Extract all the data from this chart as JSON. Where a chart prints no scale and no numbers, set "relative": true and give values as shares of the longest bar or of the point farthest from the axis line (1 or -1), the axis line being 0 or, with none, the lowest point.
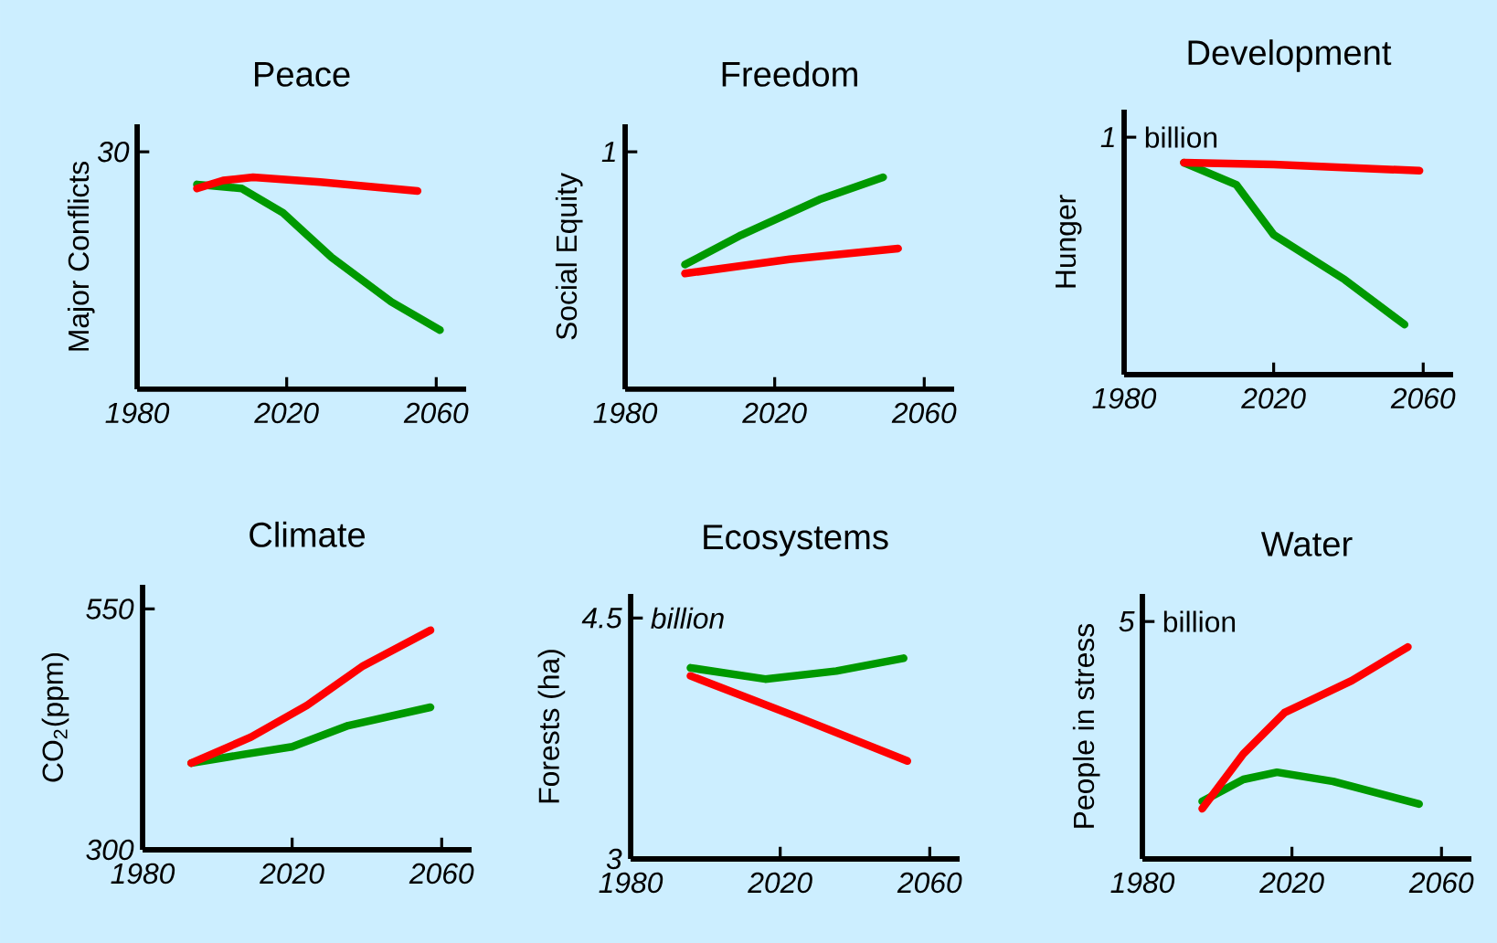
{
  "chart_data": [
    {
      "type": "line",
      "title": "Peace",
      "ylabel": "Major Conflicts",
      "relative": true,
      "annotations": [
        "30"
      ],
      "xlim": [
        1980,
        2068
      ],
      "xticks": [
        1980,
        2020,
        2060
      ],
      "series": [
        {
          "color": "#009900",
          "x": [
            1996,
            2008,
            2019,
            2032,
            2048,
            2061
          ],
          "values": [
            0.966,
            0.947,
            0.832,
            0.622,
            0.412,
            0.279
          ]
        },
        {
          "color": "#ff0000",
          "x": [
            1996,
            2003,
            2011,
            2029,
            2055
          ],
          "values": [
            0.947,
            0.985,
            1.0,
            0.977,
            0.935
          ]
        }
      ]
    },
    {
      "type": "line",
      "title": "Freedom",
      "ylabel": "Social Equity",
      "relative": true,
      "annotations": [
        "1"
      ],
      "xlim": [
        1980,
        2068
      ],
      "xticks": [
        1980,
        2020,
        2060
      ],
      "series": [
        {
          "color": "#009900",
          "x": [
            1996,
            2011,
            2032,
            2049
          ],
          "values": [
            0.588,
            0.727,
            0.895,
            1.0
          ]
        },
        {
          "color": "#ff0000",
          "x": [
            1996,
            2024,
            2053
          ],
          "values": [
            0.546,
            0.613,
            0.664
          ]
        }
      ]
    },
    {
      "type": "line",
      "title": "Development",
      "ylabel": "Hunger",
      "relative": true,
      "annotations": [
        "1",
        "billion"
      ],
      "xlim": [
        1980,
        2068
      ],
      "xticks": [
        1980,
        2020,
        2060
      ],
      "series": [
        {
          "color": "#009900",
          "x": [
            1996,
            2010,
            2020,
            2039,
            2055
          ],
          "values": [
            1.0,
            0.896,
            0.66,
            0.448,
            0.236
          ]
        },
        {
          "color": "#ff0000",
          "x": [
            1996,
            2020,
            2059
          ],
          "values": [
            1.0,
            0.991,
            0.962
          ]
        }
      ]
    },
    {
      "type": "line",
      "title": "Climate",
      "ylabel": "CO$_{2}$(ppm)",
      "xlim": [
        1980,
        2068
      ],
      "xticks": [
        1980,
        2020,
        2060
      ],
      "ylim": [
        300,
        575
      ],
      "yticks": [
        300,
        550
      ],
      "series": [
        {
          "color": "#009900",
          "x": [
            1993,
            2007,
            2020,
            2035,
            2057
          ],
          "values": [
            390,
            399,
            407,
            429,
            448
          ]
        },
        {
          "color": "#ff0000",
          "x": [
            1993,
            2009,
            2024,
            2039,
            2057
          ],
          "values": [
            390,
            417,
            450,
            491,
            528
          ]
        }
      ]
    },
    {
      "type": "line",
      "title": "Ecosystems",
      "ylabel": "Forests (ha)",
      "annotations": [
        "billion"
      ],
      "xlim": [
        1980,
        2068
      ],
      "xticks": [
        1980,
        2020,
        2060
      ],
      "ylim": [
        3,
        4.65
      ],
      "yticks": [
        3,
        4.5
      ],
      "series": [
        {
          "color": "#009900",
          "x": [
            1996,
            2016,
            2035,
            2053
          ],
          "values": [
            4.19,
            4.12,
            4.17,
            4.25
          ]
        },
        {
          "color": "#ff0000",
          "x": [
            1996,
            2025,
            2054
          ],
          "values": [
            4.14,
            3.88,
            3.61
          ]
        }
      ]
    },
    {
      "type": "line",
      "title": "Water",
      "ylabel": "People in stress",
      "relative": true,
      "annotations": [
        "5",
        "billion"
      ],
      "xlim": [
        1980,
        2068
      ],
      "xticks": [
        1980,
        2020,
        2060
      ],
      "series": [
        {
          "color": "#009900",
          "x": [
            1996,
            2007,
            2016,
            2031,
            2054
          ],
          "values": [
            0.272,
            0.375,
            0.409,
            0.366,
            0.259
          ]
        },
        {
          "color": "#ff0000",
          "x": [
            1996,
            2007,
            2018,
            2036,
            2051
          ],
          "values": [
            0.237,
            0.496,
            0.69,
            0.841,
            1.0
          ]
        }
      ]
    }
  ]
}
